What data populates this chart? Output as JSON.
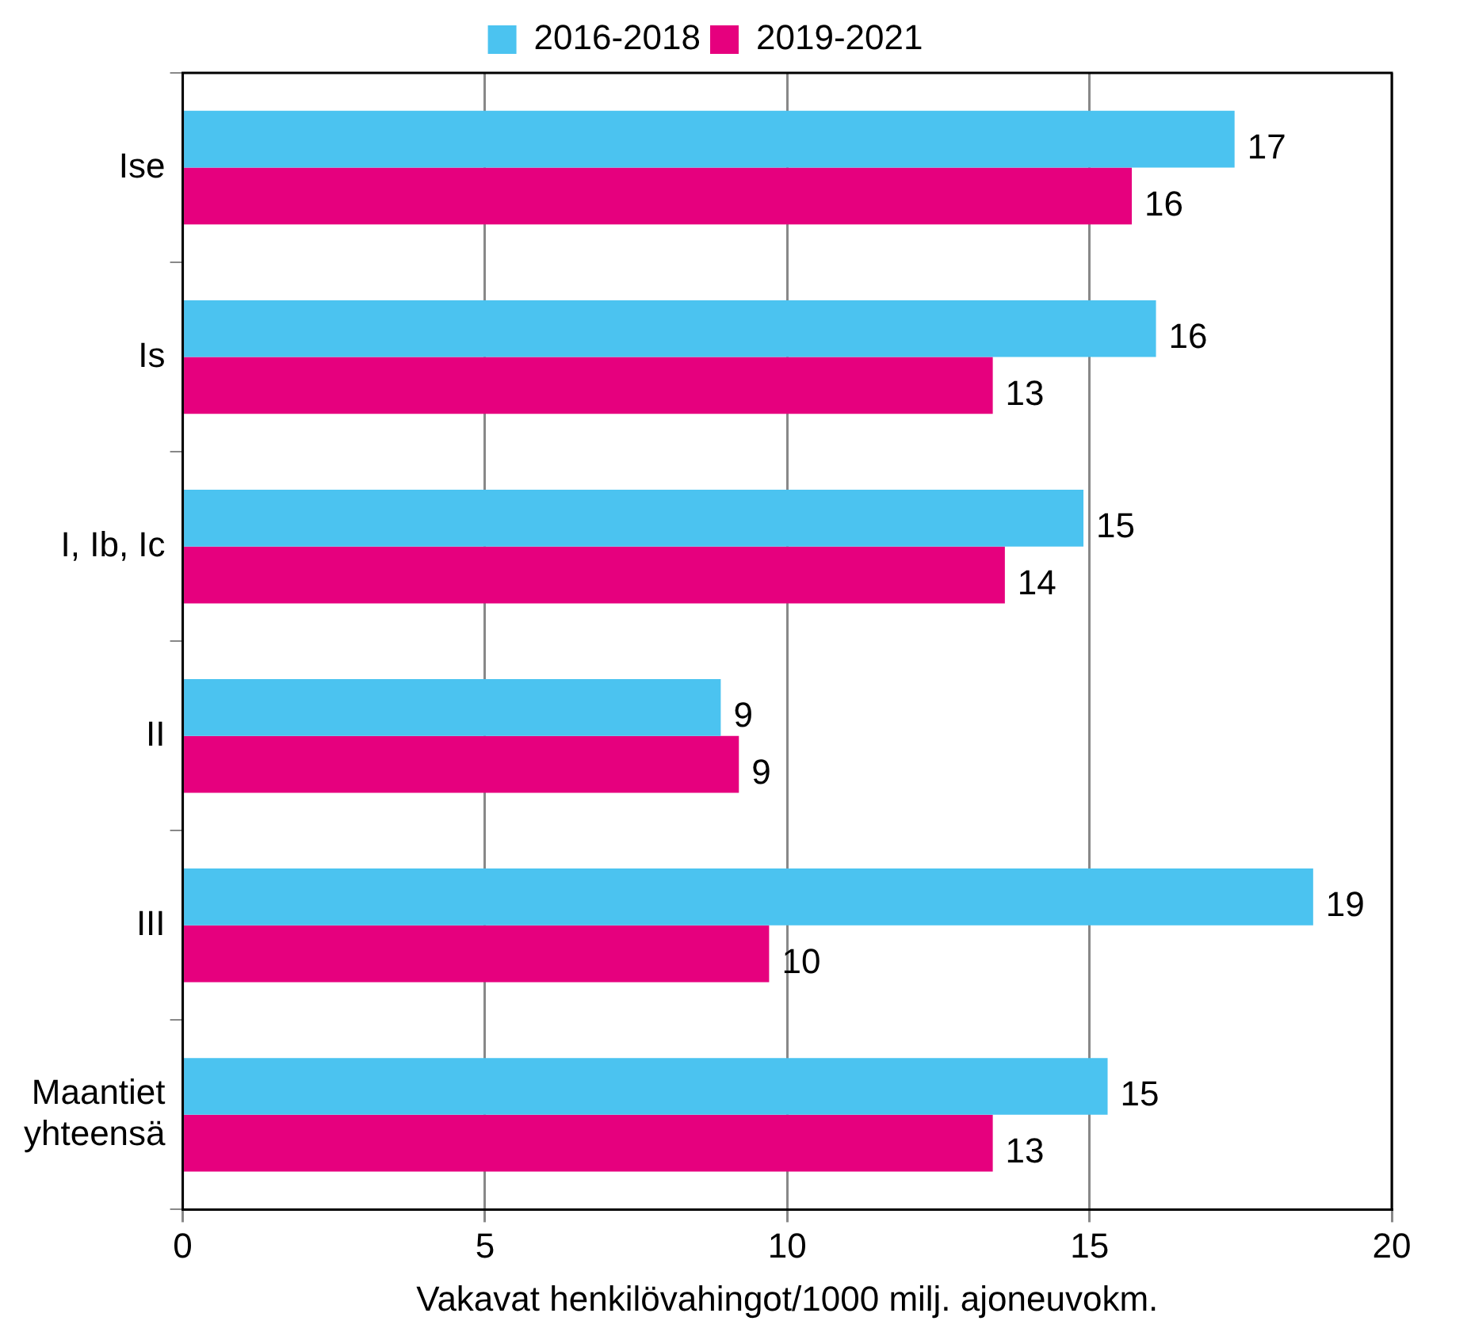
{
  "chart_data": {
    "type": "bar",
    "orientation": "horizontal",
    "xlabel": "Vakavat henkilövahingot/1000 milj. ajoneuvokm.",
    "categories": [
      "Ise",
      "Is",
      "I, Ib, Ic",
      "II",
      "III",
      "Maantiet yhteensä"
    ],
    "series": [
      {
        "name": "2016-2018",
        "color": "#4bc3f0",
        "values": [
          17.4,
          16.1,
          14.9,
          8.9,
          18.7,
          15.3
        ],
        "value_labels": [
          "17",
          "16",
          "15",
          "9",
          "19",
          "15"
        ]
      },
      {
        "name": "2019-2021",
        "color": "#e6007e",
        "values": [
          15.7,
          13.4,
          13.6,
          9.2,
          9.7,
          13.4
        ],
        "value_labels": [
          "16",
          "13",
          "14",
          "9",
          "10",
          "13"
        ]
      }
    ],
    "xlim": [
      0,
      20
    ],
    "xticks": [
      0,
      5,
      10,
      15,
      20
    ],
    "grid": "x",
    "legend": "top"
  }
}
